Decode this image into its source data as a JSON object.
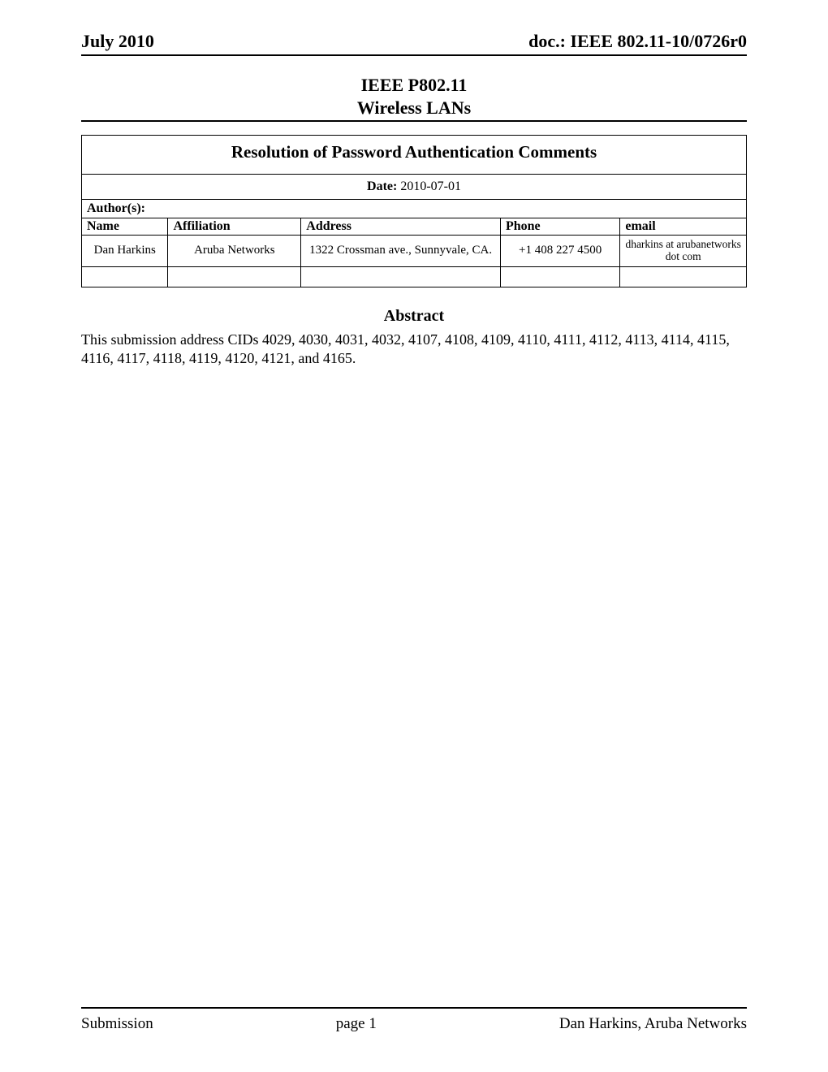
{
  "header": {
    "left": "July 2010",
    "right": "doc.: IEEE 802.11-10/0726r0"
  },
  "title": {
    "line1": "IEEE P802.11",
    "line2": "Wireless LANs"
  },
  "document_title": "Resolution of Password Authentication Comments",
  "date_label": "Date:",
  "date_value": "  2010-07-01",
  "authors_label": "Author(s):",
  "columns": {
    "name": "Name",
    "affiliation": "Affiliation",
    "address": "Address",
    "phone": "Phone",
    "email": "email"
  },
  "author": {
    "name": "Dan Harkins",
    "affiliation": "Aruba Networks",
    "address": "1322 Crossman ave., Sunnyvale, CA.",
    "phone": "+1 408 227 4500",
    "email": "dharkins at arubanetworks dot com"
  },
  "abstract_heading": "Abstract",
  "abstract_text": "This submission address CIDs 4029, 4030, 4031, 4032, 4107, 4108, 4109, 4110, 4111, 4112, 4113, 4114, 4115, 4116, 4117, 4118, 4119, 4120, 4121, and 4165.",
  "footer": {
    "left": "Submission",
    "center": "page 1",
    "right": "Dan Harkins, Aruba Networks"
  }
}
